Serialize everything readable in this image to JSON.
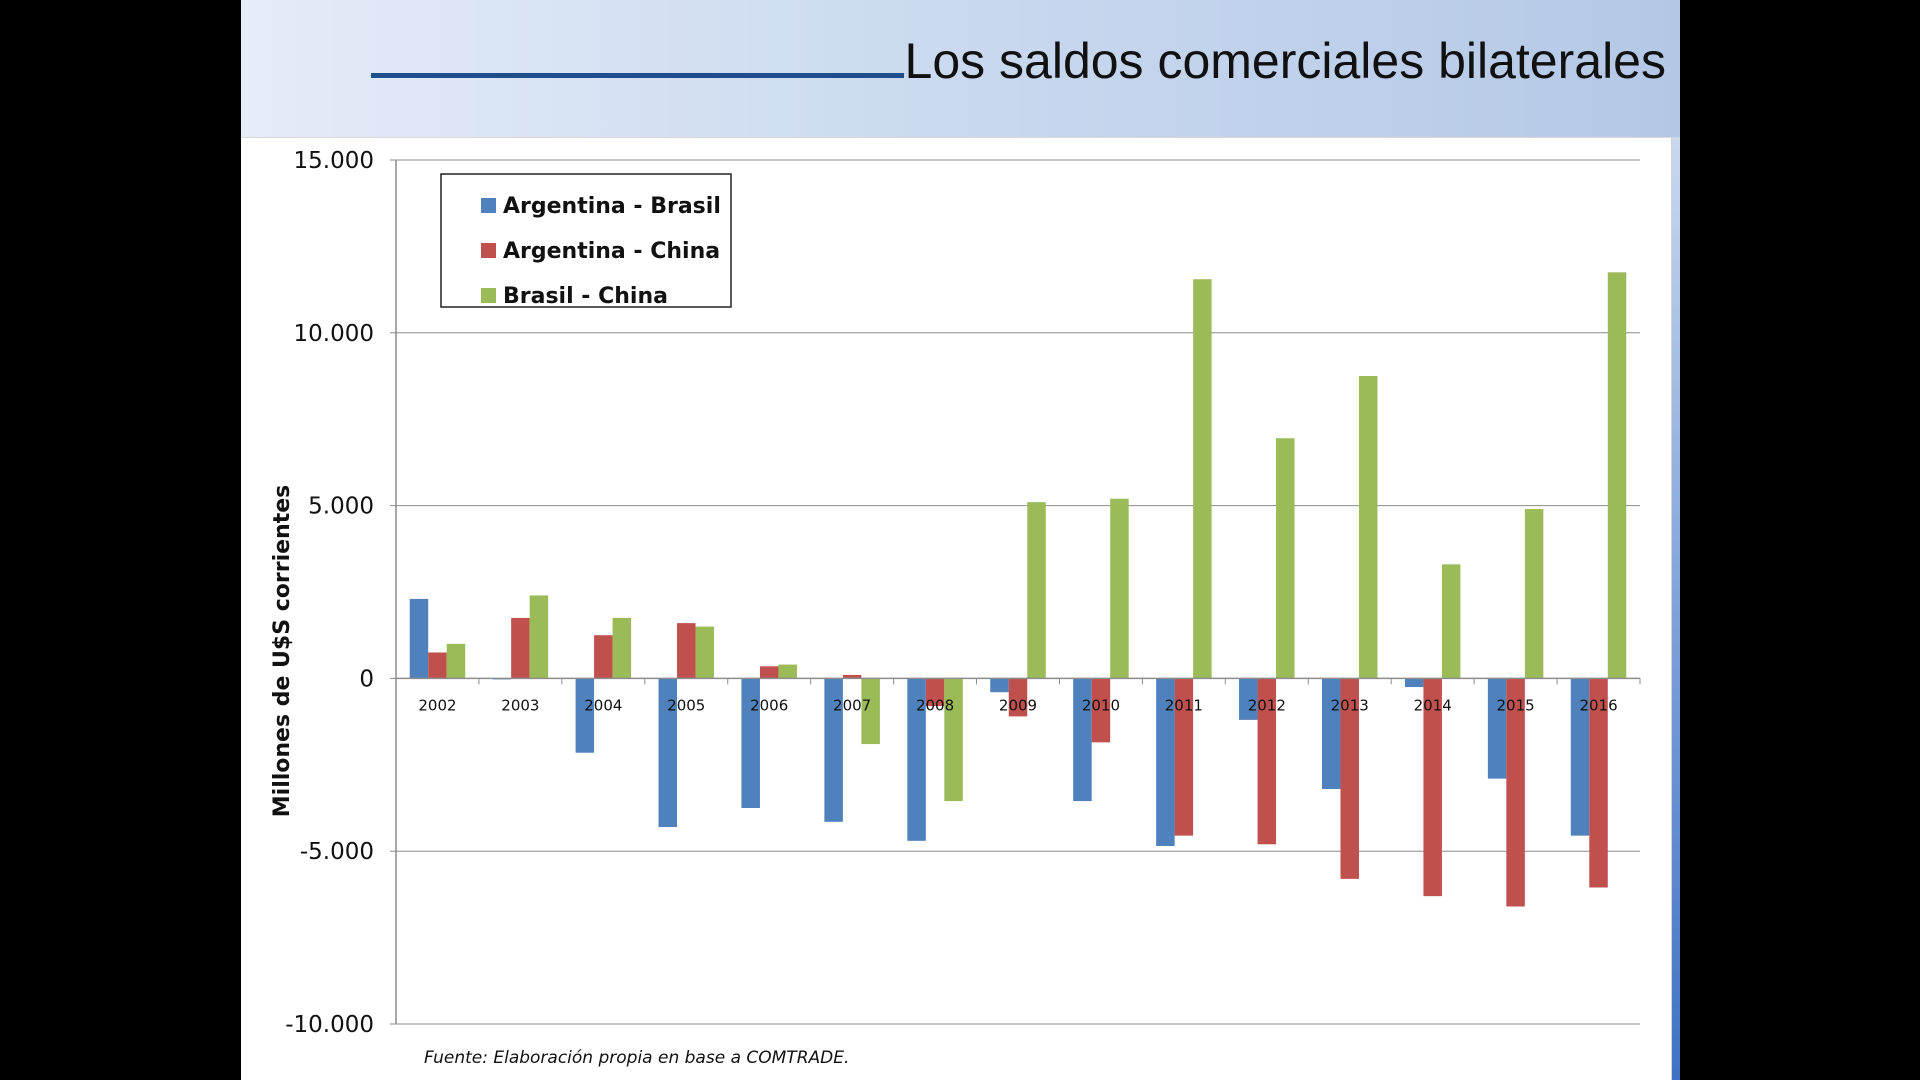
{
  "slide": {
    "title": "Los saldos comerciales bilaterales",
    "source_note": "Fuente: Elaboración propia en base a COMTRADE.",
    "colors": {
      "header_band": "#c7d7ee",
      "title_rule": "#1f4e8c",
      "accent": "#3f72c4"
    }
  },
  "chart_data": {
    "type": "bar",
    "title": "",
    "xlabel": "",
    "ylabel": "Millones de U$S corrientes",
    "ylim": [
      -10000,
      15000
    ],
    "yticks": [
      15000,
      10000,
      5000,
      0,
      -5000,
      -10000
    ],
    "ytick_labels": [
      "15.000",
      "10.000",
      "5.000",
      "0",
      "-5.000",
      "-10.000"
    ],
    "grid": true,
    "legend_position": "top-left",
    "categories": [
      "2002",
      "2003",
      "2004",
      "2005",
      "2006",
      "2007",
      "2008",
      "2009",
      "2010",
      "2011",
      "2012",
      "2013",
      "2014",
      "2015",
      "2016"
    ],
    "series": [
      {
        "name": "Argentina - Brasil",
        "color": "#4f81bd",
        "values": [
          2300,
          -30,
          -2150,
          -4300,
          -3750,
          -4150,
          -4700,
          -400,
          -3550,
          -4850,
          -1200,
          -3200,
          -250,
          -2900,
          -4550
        ]
      },
      {
        "name": "Argentina - China",
        "color": "#c0504d",
        "values": [
          750,
          1750,
          1250,
          1600,
          350,
          100,
          -800,
          -1100,
          -1850,
          -4550,
          -4800,
          -5800,
          -6300,
          -6600,
          -6050
        ]
      },
      {
        "name": "Brasil - China",
        "color": "#9bbb59",
        "values": [
          1000,
          2400,
          1750,
          1500,
          400,
          -1900,
          -3550,
          5100,
          5200,
          11550,
          6950,
          8750,
          3300,
          4900,
          11750
        ]
      }
    ]
  }
}
